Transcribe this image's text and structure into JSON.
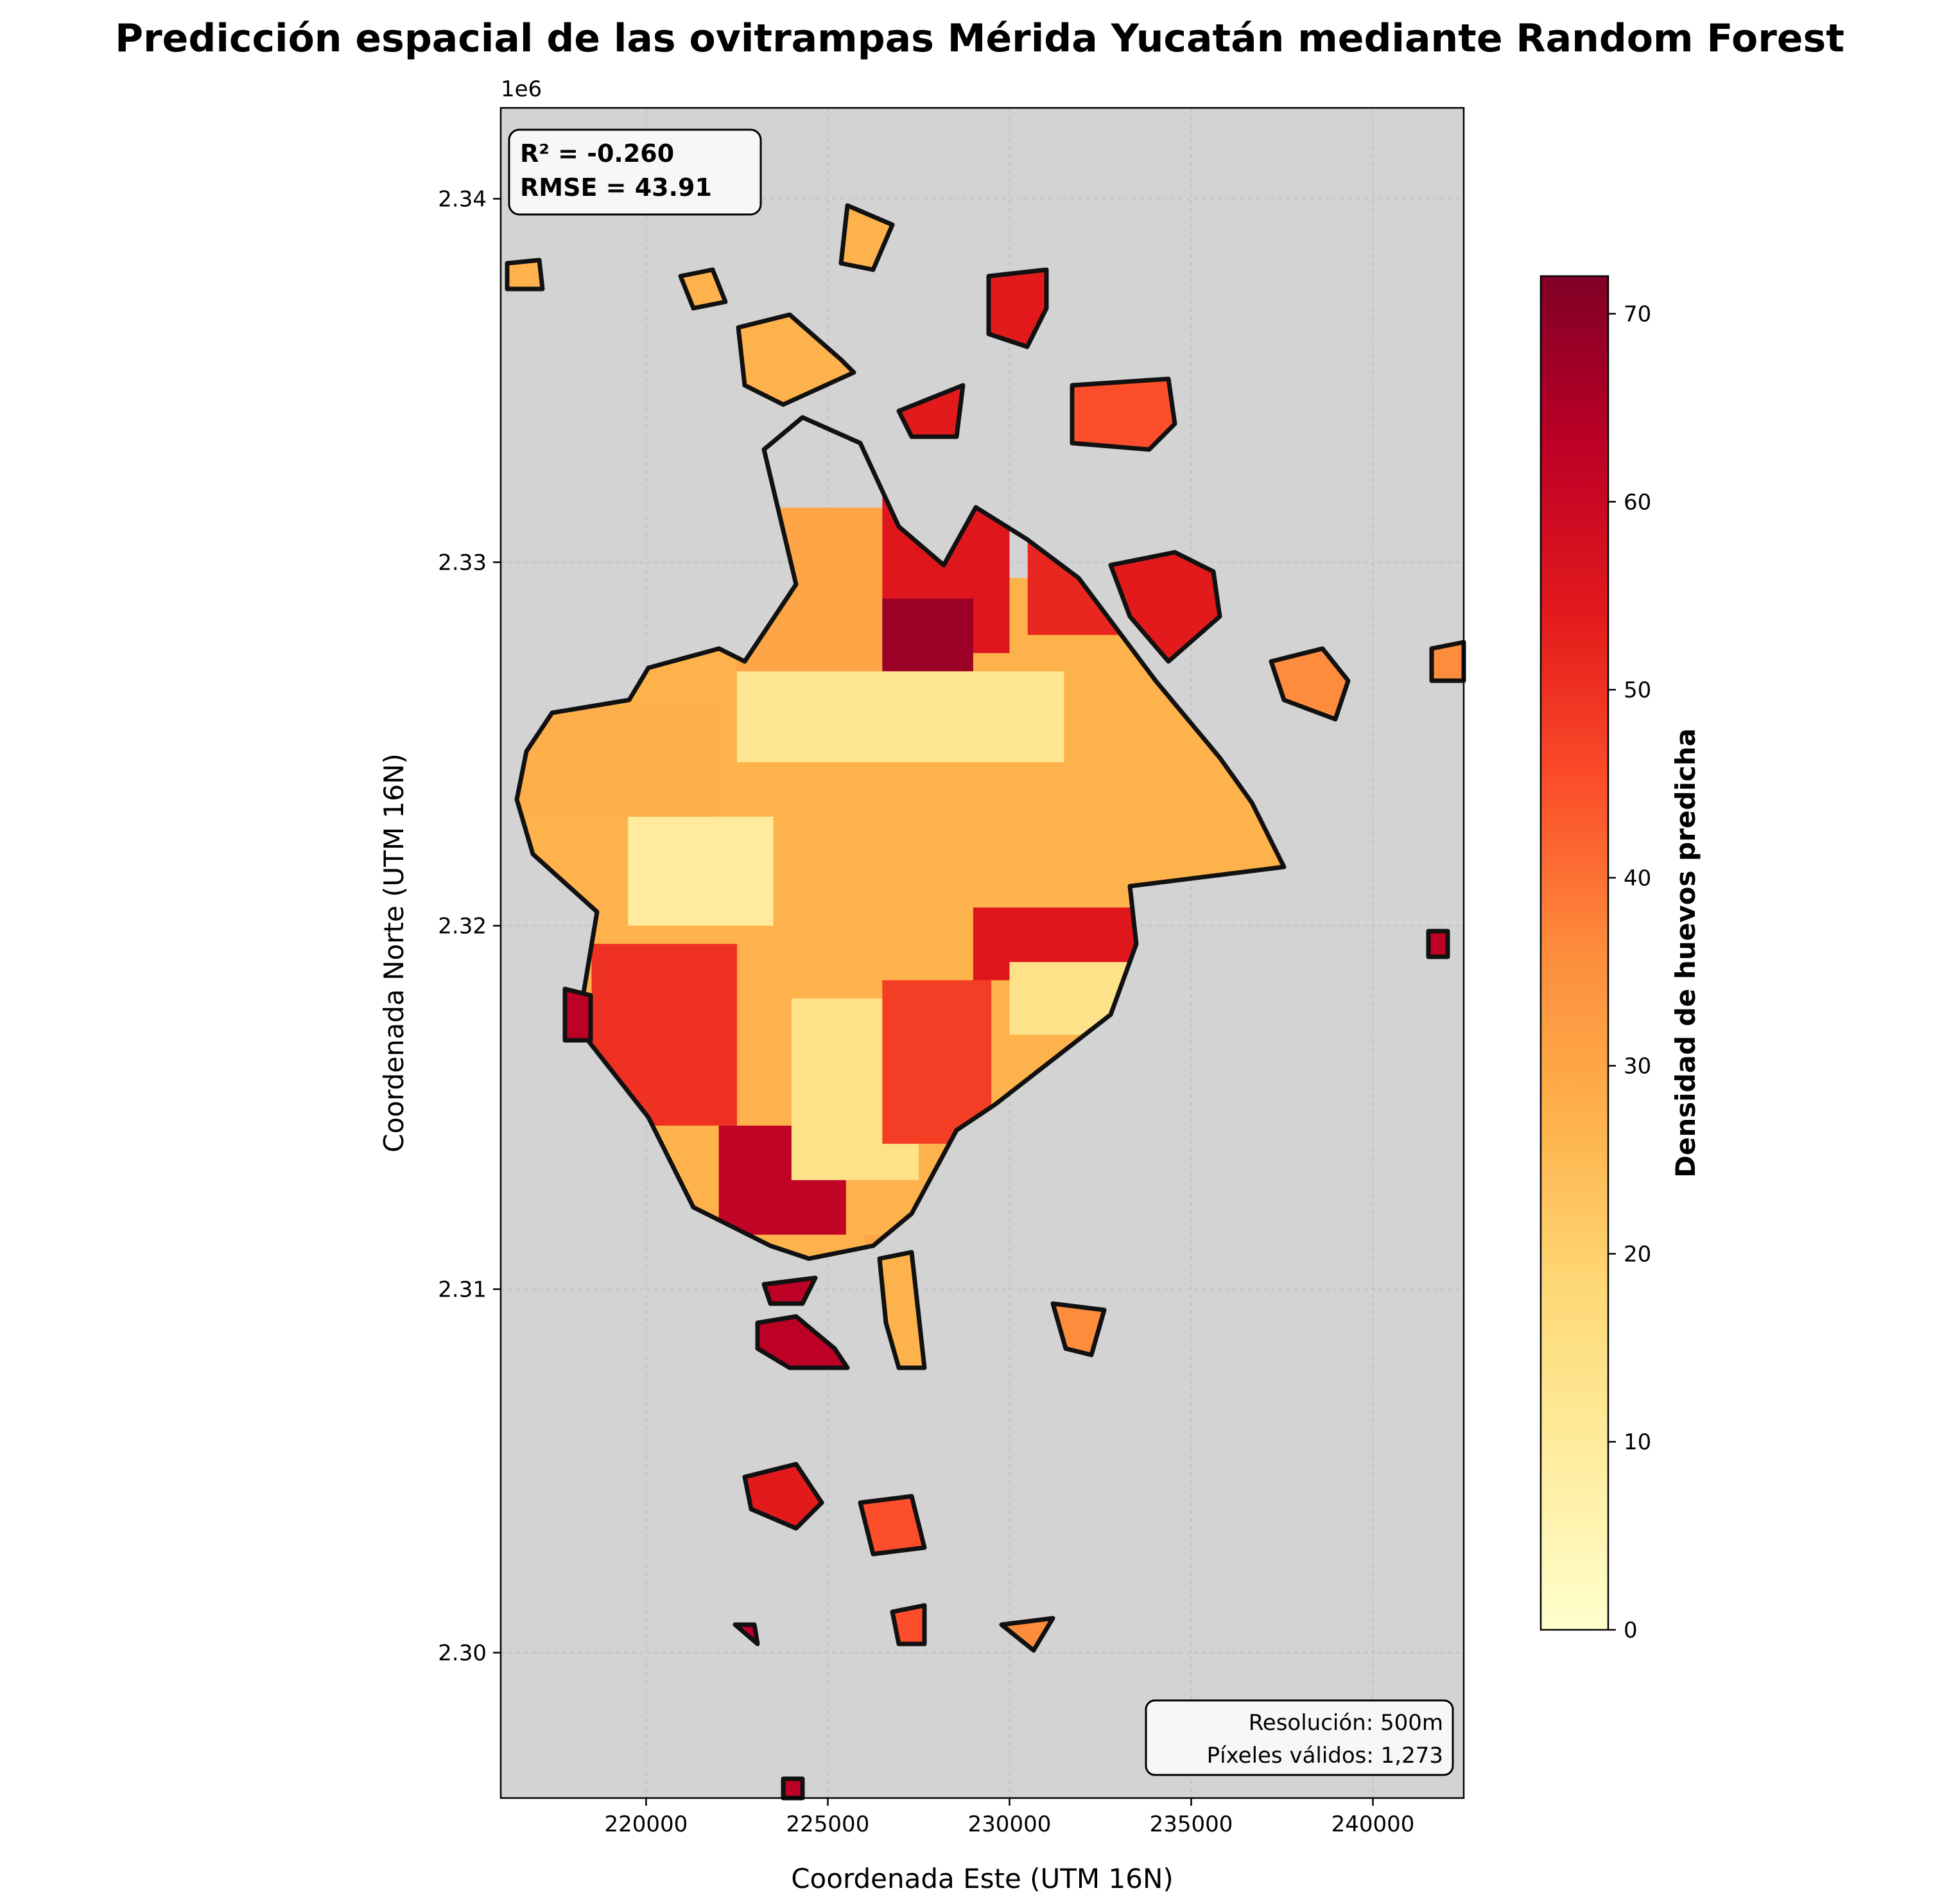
{
  "title": "Predicción espacial de las ovitrampas Mérida Yucatán mediante Random Forest",
  "xlabel": "Coordenada Este (UTM 16N)",
  "ylabel": "Coordenada Norte (UTM 16N)",
  "offset_label": "1e6",
  "stats": {
    "r2": "R² = -0.260",
    "rmse": "RMSE = 43.91"
  },
  "info": {
    "resolution": "Resolución: 500m",
    "valid_pixels": "Píxeles válidos: 1,273"
  },
  "colorbar": {
    "label": "Densidad de huevos predicha",
    "ticks": [
      "0",
      "10",
      "20",
      "30",
      "40",
      "50",
      "60",
      "70"
    ],
    "max": 72,
    "colormap": "YlOrRd"
  },
  "colors": {
    "background": "#d3d3d3",
    "outline": "#111111",
    "frame": "#000000"
  },
  "chart_data": {
    "type": "heatmap",
    "title": "Predicción espacial de las ovitrampas Mérida Yucatán mediante Random Forest",
    "xlabel": "Coordenada Este (UTM 16N)",
    "ylabel": "Coordenada Norte (UTM 16N)",
    "xlim": [
      216000,
      242500
    ],
    "ylim": [
      2296000,
      2342500
    ],
    "x_ticks": [
      "220000",
      "225000",
      "230000",
      "235000",
      "240000"
    ],
    "y_ticks": [
      "2.30",
      "2.31",
      "2.32",
      "2.33",
      "2.34"
    ],
    "y_tick_values": [
      2300000,
      2310000,
      2320000,
      2330000,
      2340000
    ],
    "x_tick_values": [
      220000,
      225000,
      230000,
      235000,
      240000
    ],
    "grid": true,
    "value_range": [
      0,
      72
    ],
    "cell_size_m": 500,
    "zones": [
      {
        "x": [
          218500,
          222500
        ],
        "y": [
          2314500,
          2319500
        ],
        "value": 50
      },
      {
        "x": [
          222000,
          225500
        ],
        "y": [
          2311500,
          2314500
        ],
        "value": 62
      },
      {
        "x": [
          224000,
          227500
        ],
        "y": [
          2313000,
          2318000
        ],
        "value": 14
      },
      {
        "x": [
          226500,
          229500
        ],
        "y": [
          2314000,
          2318500
        ],
        "value": 48
      },
      {
        "x": [
          219500,
          223500
        ],
        "y": [
          2320000,
          2323000
        ],
        "value": 10
      },
      {
        "x": [
          222500,
          231500
        ],
        "y": [
          2324500,
          2327000
        ],
        "value": 12
      },
      {
        "x": [
          222500,
          226500
        ],
        "y": [
          2327000,
          2331500
        ],
        "value": 30
      },
      {
        "x": [
          226500,
          230000
        ],
        "y": [
          2327500,
          2333000
        ],
        "value": 55
      },
      {
        "x": [
          226500,
          229000
        ],
        "y": [
          2327000,
          2329000
        ],
        "value": 68
      },
      {
        "x": [
          216500,
          222000
        ],
        "y": [
          2323000,
          2326000
        ],
        "value": 28
      },
      {
        "x": [
          229000,
          234000
        ],
        "y": [
          2318500,
          2320500
        ],
        "value": 55
      },
      {
        "x": [
          230000,
          234000
        ],
        "y": [
          2317000,
          2319000
        ],
        "value": 14
      },
      {
        "x": [
          230500,
          236000
        ],
        "y": [
          2328000,
          2331000
        ],
        "value": 52
      },
      {
        "x": [
          228000,
          230500
        ],
        "y": [
          2337000,
          2339500
        ],
        "value": 56
      },
      {
        "x": [
          232000,
          235000
        ],
        "y": [
          2334500,
          2336500
        ],
        "value": 50
      },
      {
        "x": [
          222500,
          224500
        ],
        "y": [
          2308500,
          2310000
        ],
        "value": 65
      },
      {
        "x": [
          222500,
          224500
        ],
        "y": [
          2304000,
          2306000
        ],
        "value": 60
      },
      {
        "x": [
          226000,
          227000
        ],
        "y": [
          2310000,
          2311500
        ],
        "value": 30
      }
    ]
  }
}
